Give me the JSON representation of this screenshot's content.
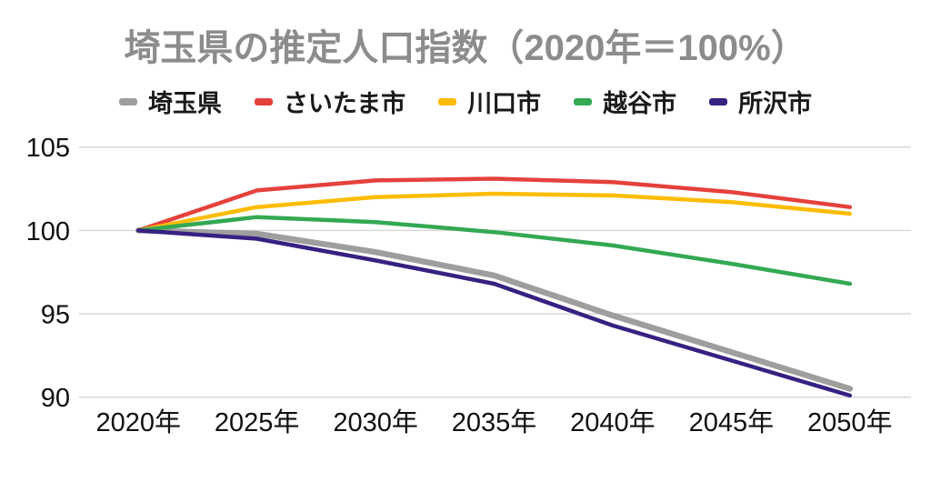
{
  "title": "埼玉県の推定人口指数（2020年＝100%）",
  "colors": {
    "title_text": "#8c8c8c",
    "grid": "#d9d9d9",
    "axis_text": "#111111",
    "background": "#ffffff"
  },
  "chart_data": {
    "type": "line",
    "title": "埼玉県の推定人口指数（2020年＝100%）",
    "categories": [
      "2020年",
      "2025年",
      "2030年",
      "2035年",
      "2040年",
      "2045年",
      "2050年"
    ],
    "series": [
      {
        "name": "埼玉県",
        "color": "#9e9e9e",
        "values": [
          100,
          99.8,
          98.7,
          97.3,
          94.9,
          92.7,
          90.5
        ]
      },
      {
        "name": "さいたま市",
        "color": "#e5413c",
        "values": [
          100,
          102.4,
          103.0,
          103.1,
          102.9,
          102.3,
          101.4
        ]
      },
      {
        "name": "川口市",
        "color": "#fbbc04",
        "values": [
          100,
          101.4,
          102.0,
          102.2,
          102.1,
          101.7,
          101.0
        ]
      },
      {
        "name": "越谷市",
        "color": "#34a853",
        "values": [
          100,
          100.8,
          100.5,
          99.9,
          99.1,
          98.0,
          96.8
        ]
      },
      {
        "name": "所沢市",
        "color": "#362181",
        "values": [
          100,
          99.5,
          98.2,
          96.8,
          94.3,
          92.2,
          90.1
        ]
      }
    ],
    "xlabel": "",
    "ylabel": "",
    "ylim": [
      90,
      105
    ],
    "yticks": [
      105,
      100,
      95,
      90
    ],
    "grid": true,
    "legend_position": "top"
  }
}
